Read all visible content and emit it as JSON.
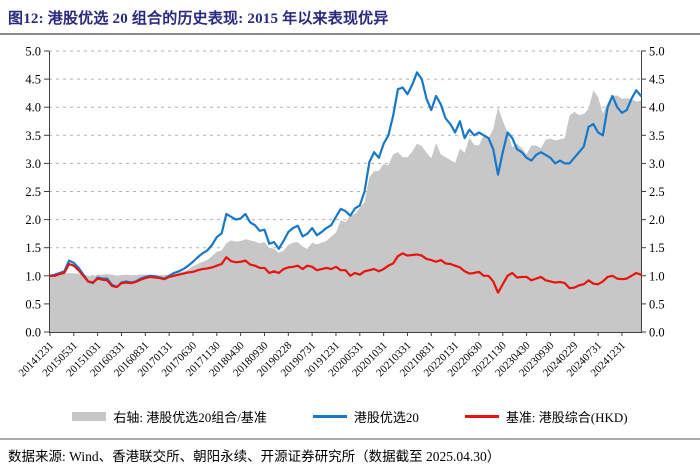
{
  "header": {
    "title": "图12: 港股优选 20 组合的历史表现: 2015 年以来表现优异"
  },
  "colors": {
    "title": "#29297f",
    "axis": "#3f3f3f",
    "grid": "#b3b3b3",
    "area_gray": "#c7c7c7",
    "portfolio_blue": "#1778c8",
    "benchmark_red": "#e8120e"
  },
  "chart_data": {
    "type": "area",
    "subtype": "line+area, dual-axis (area on right axis)",
    "x_start": "20141231",
    "x_frequency": "monthly",
    "x_tick_interval_months": 5,
    "x_tick_labels": [
      "20141231",
      "20150531",
      "20151031",
      "20160331",
      "20160831",
      "20170131",
      "20170630",
      "20171130",
      "20180430",
      "20180930",
      "20190228",
      "20190731",
      "20191231",
      "20200531",
      "20201031",
      "20210331",
      "20210831",
      "20220131",
      "20220630",
      "20221130",
      "20230430",
      "20230930",
      "20240229",
      "20240731",
      "20241231"
    ],
    "ylim": [
      0.0,
      5.0
    ],
    "y_tick_step": 0.5,
    "y_tick_labels": [
      "0.0",
      "0.5",
      "1.0",
      "1.5",
      "2.0",
      "2.5",
      "3.0",
      "3.5",
      "4.0",
      "4.5",
      "5.0"
    ],
    "grid": "horizontal-dashed",
    "legend_position": "bottom",
    "series": [
      {
        "name": "右轴: 港股优选20组合/基准",
        "kind": "area",
        "axis": "right",
        "color": "#c7c7c7",
        "values": [
          1.0,
          1.02,
          1.02,
          1.03,
          1.05,
          1.04,
          1.04,
          1.02,
          1.0,
          0.99,
          1.02,
          1.02,
          1.03,
          1.02,
          1.0,
          1.01,
          1.02,
          1.01,
          1.01,
          1.02,
          1.02,
          1.02,
          1.02,
          1.01,
          1.01,
          1.02,
          1.05,
          1.06,
          1.08,
          1.11,
          1.17,
          1.21,
          1.25,
          1.28,
          1.35,
          1.43,
          1.45,
          1.58,
          1.63,
          1.61,
          1.62,
          1.65,
          1.63,
          1.61,
          1.58,
          1.6,
          1.5,
          1.48,
          1.41,
          1.45,
          1.55,
          1.59,
          1.6,
          1.52,
          1.48,
          1.59,
          1.56,
          1.59,
          1.62,
          1.7,
          1.77,
          1.99,
          1.95,
          2.07,
          2.1,
          2.21,
          2.31,
          2.75,
          2.86,
          2.87,
          2.99,
          2.97,
          3.16,
          3.2,
          3.11,
          3.11,
          3.21,
          3.35,
          3.31,
          3.19,
          3.09,
          3.36,
          3.16,
          3.11,
          3.06,
          3.01,
          3.26,
          3.19,
          3.46,
          3.33,
          3.32,
          3.5,
          3.45,
          3.61,
          4.0,
          3.76,
          3.55,
          3.29,
          3.35,
          3.27,
          3.16,
          3.32,
          3.32,
          3.27,
          3.42,
          3.44,
          3.41,
          3.43,
          3.45,
          3.85,
          3.92,
          3.86,
          3.88,
          3.97,
          4.3,
          4.18,
          3.89,
          4.08,
          4.2,
          4.21,
          4.15,
          4.16,
          4.15,
          4.1,
          4.12
        ]
      },
      {
        "name": "港股优选20",
        "kind": "line",
        "axis": "left",
        "color": "#1778c8",
        "values": [
          1.0,
          1.02,
          1.05,
          1.08,
          1.27,
          1.23,
          1.14,
          1.02,
          0.9,
          0.87,
          0.97,
          0.95,
          0.95,
          0.84,
          0.8,
          0.88,
          0.9,
          0.88,
          0.9,
          0.95,
          0.98,
          1.0,
          0.99,
          0.97,
          0.95,
          1.0,
          1.05,
          1.08,
          1.12,
          1.18,
          1.25,
          1.33,
          1.4,
          1.45,
          1.55,
          1.69,
          1.75,
          2.1,
          2.05,
          2.0,
          2.02,
          2.1,
          1.95,
          1.9,
          1.8,
          1.82,
          1.57,
          1.6,
          1.48,
          1.62,
          1.78,
          1.85,
          1.89,
          1.7,
          1.75,
          1.85,
          1.72,
          1.78,
          1.85,
          1.9,
          2.05,
          2.19,
          2.15,
          2.07,
          2.2,
          2.25,
          2.5,
          3.02,
          3.2,
          3.1,
          3.35,
          3.5,
          3.85,
          4.32,
          4.35,
          4.23,
          4.4,
          4.62,
          4.5,
          4.15,
          3.95,
          4.2,
          4.05,
          3.8,
          3.7,
          3.55,
          3.75,
          3.45,
          3.6,
          3.5,
          3.55,
          3.5,
          3.45,
          3.25,
          2.8,
          3.2,
          3.55,
          3.45,
          3.25,
          3.2,
          3.1,
          3.05,
          3.15,
          3.2,
          3.15,
          3.1,
          3.0,
          3.05,
          3.0,
          3.0,
          3.1,
          3.2,
          3.3,
          3.65,
          3.7,
          3.55,
          3.5,
          4.0,
          4.2,
          4.0,
          3.9,
          3.95,
          4.15,
          4.3,
          4.2
        ]
      },
      {
        "name": "基准: 港股综合(HKD)",
        "kind": "line",
        "axis": "left",
        "color": "#e8120e",
        "values": [
          1.0,
          1.0,
          1.03,
          1.05,
          1.21,
          1.18,
          1.1,
          1.0,
          0.9,
          0.88,
          0.95,
          0.93,
          0.92,
          0.82,
          0.8,
          0.87,
          0.88,
          0.87,
          0.89,
          0.93,
          0.96,
          0.98,
          0.97,
          0.96,
          0.94,
          0.98,
          1.0,
          1.02,
          1.04,
          1.06,
          1.07,
          1.1,
          1.12,
          1.13,
          1.15,
          1.18,
          1.21,
          1.33,
          1.26,
          1.24,
          1.25,
          1.27,
          1.2,
          1.18,
          1.14,
          1.14,
          1.05,
          1.08,
          1.05,
          1.12,
          1.15,
          1.16,
          1.18,
          1.12,
          1.18,
          1.16,
          1.1,
          1.12,
          1.14,
          1.12,
          1.16,
          1.1,
          1.1,
          1.0,
          1.05,
          1.02,
          1.08,
          1.1,
          1.12,
          1.08,
          1.12,
          1.18,
          1.22,
          1.35,
          1.4,
          1.36,
          1.37,
          1.38,
          1.36,
          1.3,
          1.28,
          1.25,
          1.28,
          1.22,
          1.21,
          1.18,
          1.15,
          1.08,
          1.04,
          1.05,
          1.07,
          1.0,
          1.0,
          0.9,
          0.7,
          0.85,
          1.0,
          1.05,
          0.97,
          0.98,
          0.98,
          0.92,
          0.95,
          0.98,
          0.92,
          0.9,
          0.88,
          0.89,
          0.87,
          0.78,
          0.79,
          0.83,
          0.85,
          0.92,
          0.86,
          0.85,
          0.9,
          0.98,
          1.0,
          0.95,
          0.94,
          0.95,
          1.0,
          1.05,
          1.02
        ]
      }
    ]
  },
  "footer": {
    "source": "数据来源: Wind、香港联交所、朝阳永续、开源证券研究所（数据截至 2025.04.30）"
  }
}
